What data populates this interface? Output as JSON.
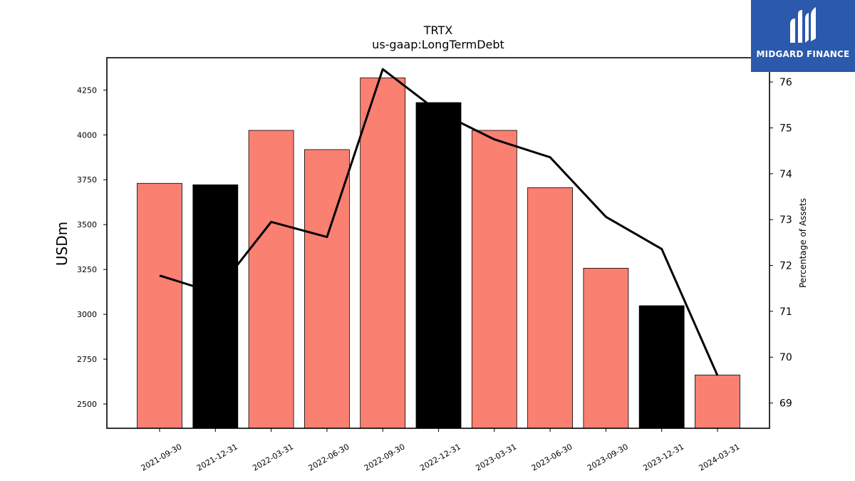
{
  "chart_data": {
    "type": "bar",
    "title": "TRTX",
    "subtitle": "us-gaap:LongTermDebt",
    "ylabel": "USDm",
    "y2label": "Percentage of Assets",
    "categories": [
      "2021-09-30",
      "2021-12-31",
      "2022-03-31",
      "2022-06-30",
      "2022-09-30",
      "2022-12-31",
      "2023-03-31",
      "2023-06-30",
      "2023-09-30",
      "2023-12-31",
      "2024-03-31"
    ],
    "bar_colors": [
      "#fa8072",
      "#000000",
      "#fa8072",
      "#fa8072",
      "#fa8072",
      "#000000",
      "#fa8072",
      "#fa8072",
      "#fa8072",
      "#000000",
      "#fa8072"
    ],
    "series": [
      {
        "values": [
          3730,
          3722,
          4025,
          3918,
          4318,
          4180,
          4025,
          3706,
          3257,
          3048,
          2662
        ]
      },
      {
        "axis": "right",
        "values": [
          71.78,
          71.4,
          72.95,
          72.62,
          76.28,
          75.35,
          74.75,
          74.36,
          73.06,
          72.36,
          69.6
        ]
      }
    ],
    "ylim": [
      2365,
      4430
    ],
    "yticks": [
      2500,
      2750,
      3000,
      3250,
      3500,
      3750,
      4000,
      4250
    ],
    "y2lim": [
      68.45,
      76.53
    ],
    "y2ticks": [
      69,
      70,
      71,
      72,
      73,
      74,
      75,
      76
    ],
    "legend": "none",
    "grid": false
  },
  "logo": {
    "text": "MIDGARD FINANCE"
  }
}
